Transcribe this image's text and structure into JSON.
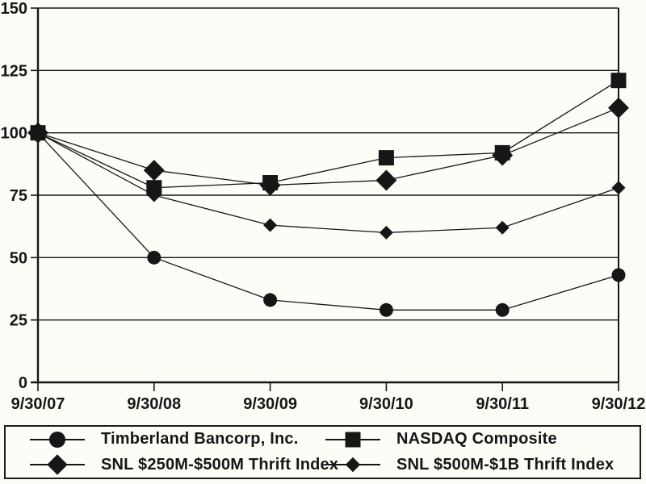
{
  "chart_data": {
    "type": "line",
    "x": [
      "9/30/07",
      "9/30/08",
      "9/30/09",
      "9/30/10",
      "9/30/11",
      "9/30/12"
    ],
    "series": [
      {
        "name": "Timberland Bancorp, Inc.",
        "marker": "circle",
        "values": [
          100,
          50,
          33,
          29,
          29,
          43
        ]
      },
      {
        "name": "NASDAQ Composite",
        "marker": "square",
        "values": [
          100,
          78,
          80,
          90,
          92,
          121
        ]
      },
      {
        "name": "SNL $250M-$500M Thrift Index",
        "marker": "diamond-large",
        "values": [
          100,
          85,
          79,
          81,
          91,
          110
        ]
      },
      {
        "name": "SNL $500M-$1B Thrift Index",
        "marker": "diamond-small",
        "values": [
          100,
          75,
          63,
          60,
          62,
          78
        ]
      }
    ],
    "title": "",
    "xlabel": "",
    "ylabel": "",
    "ylim": [
      0,
      150
    ],
    "yticks": [
      0,
      25,
      50,
      75,
      100,
      125,
      150
    ],
    "grid": true,
    "legend_position": "bottom",
    "line_color": "#161616",
    "background": "#fdfdf8"
  }
}
